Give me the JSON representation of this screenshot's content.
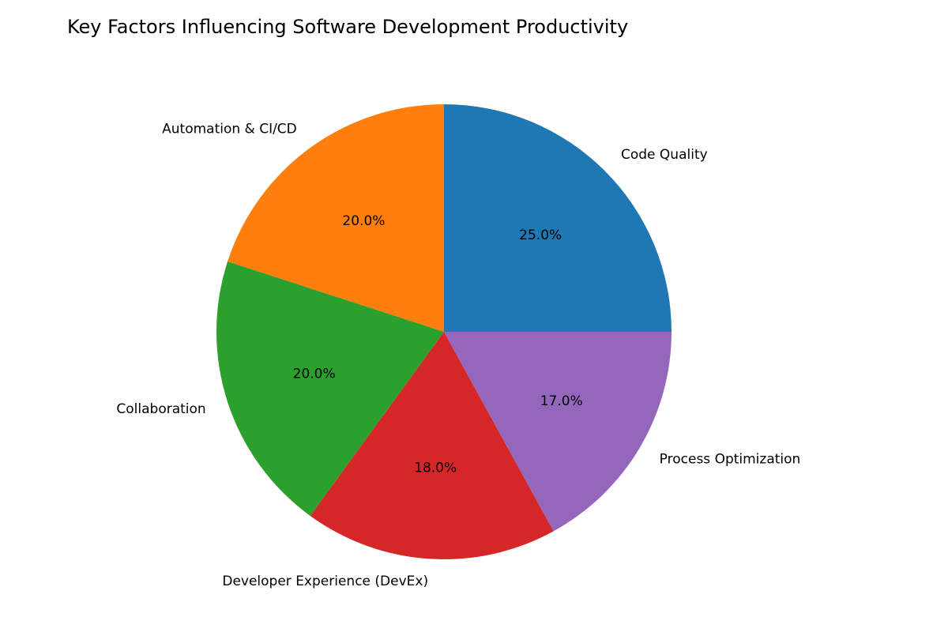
{
  "chart_data": {
    "type": "pie",
    "title": "Key Factors Influencing Software Development Productivity",
    "categories": [
      "Code Quality",
      "Automation & CI/CD",
      "Collaboration",
      "Developer Experience (DevEx)",
      "Process Optimization"
    ],
    "values": [
      25,
      20,
      20,
      18,
      17
    ],
    "value_labels": [
      "25.0%",
      "20.0%",
      "20.0%",
      "18.0%",
      "17.0%"
    ],
    "colors": [
      "#1f77b4",
      "#ff7f0e",
      "#2ca02c",
      "#d62728",
      "#9467bd"
    ]
  }
}
